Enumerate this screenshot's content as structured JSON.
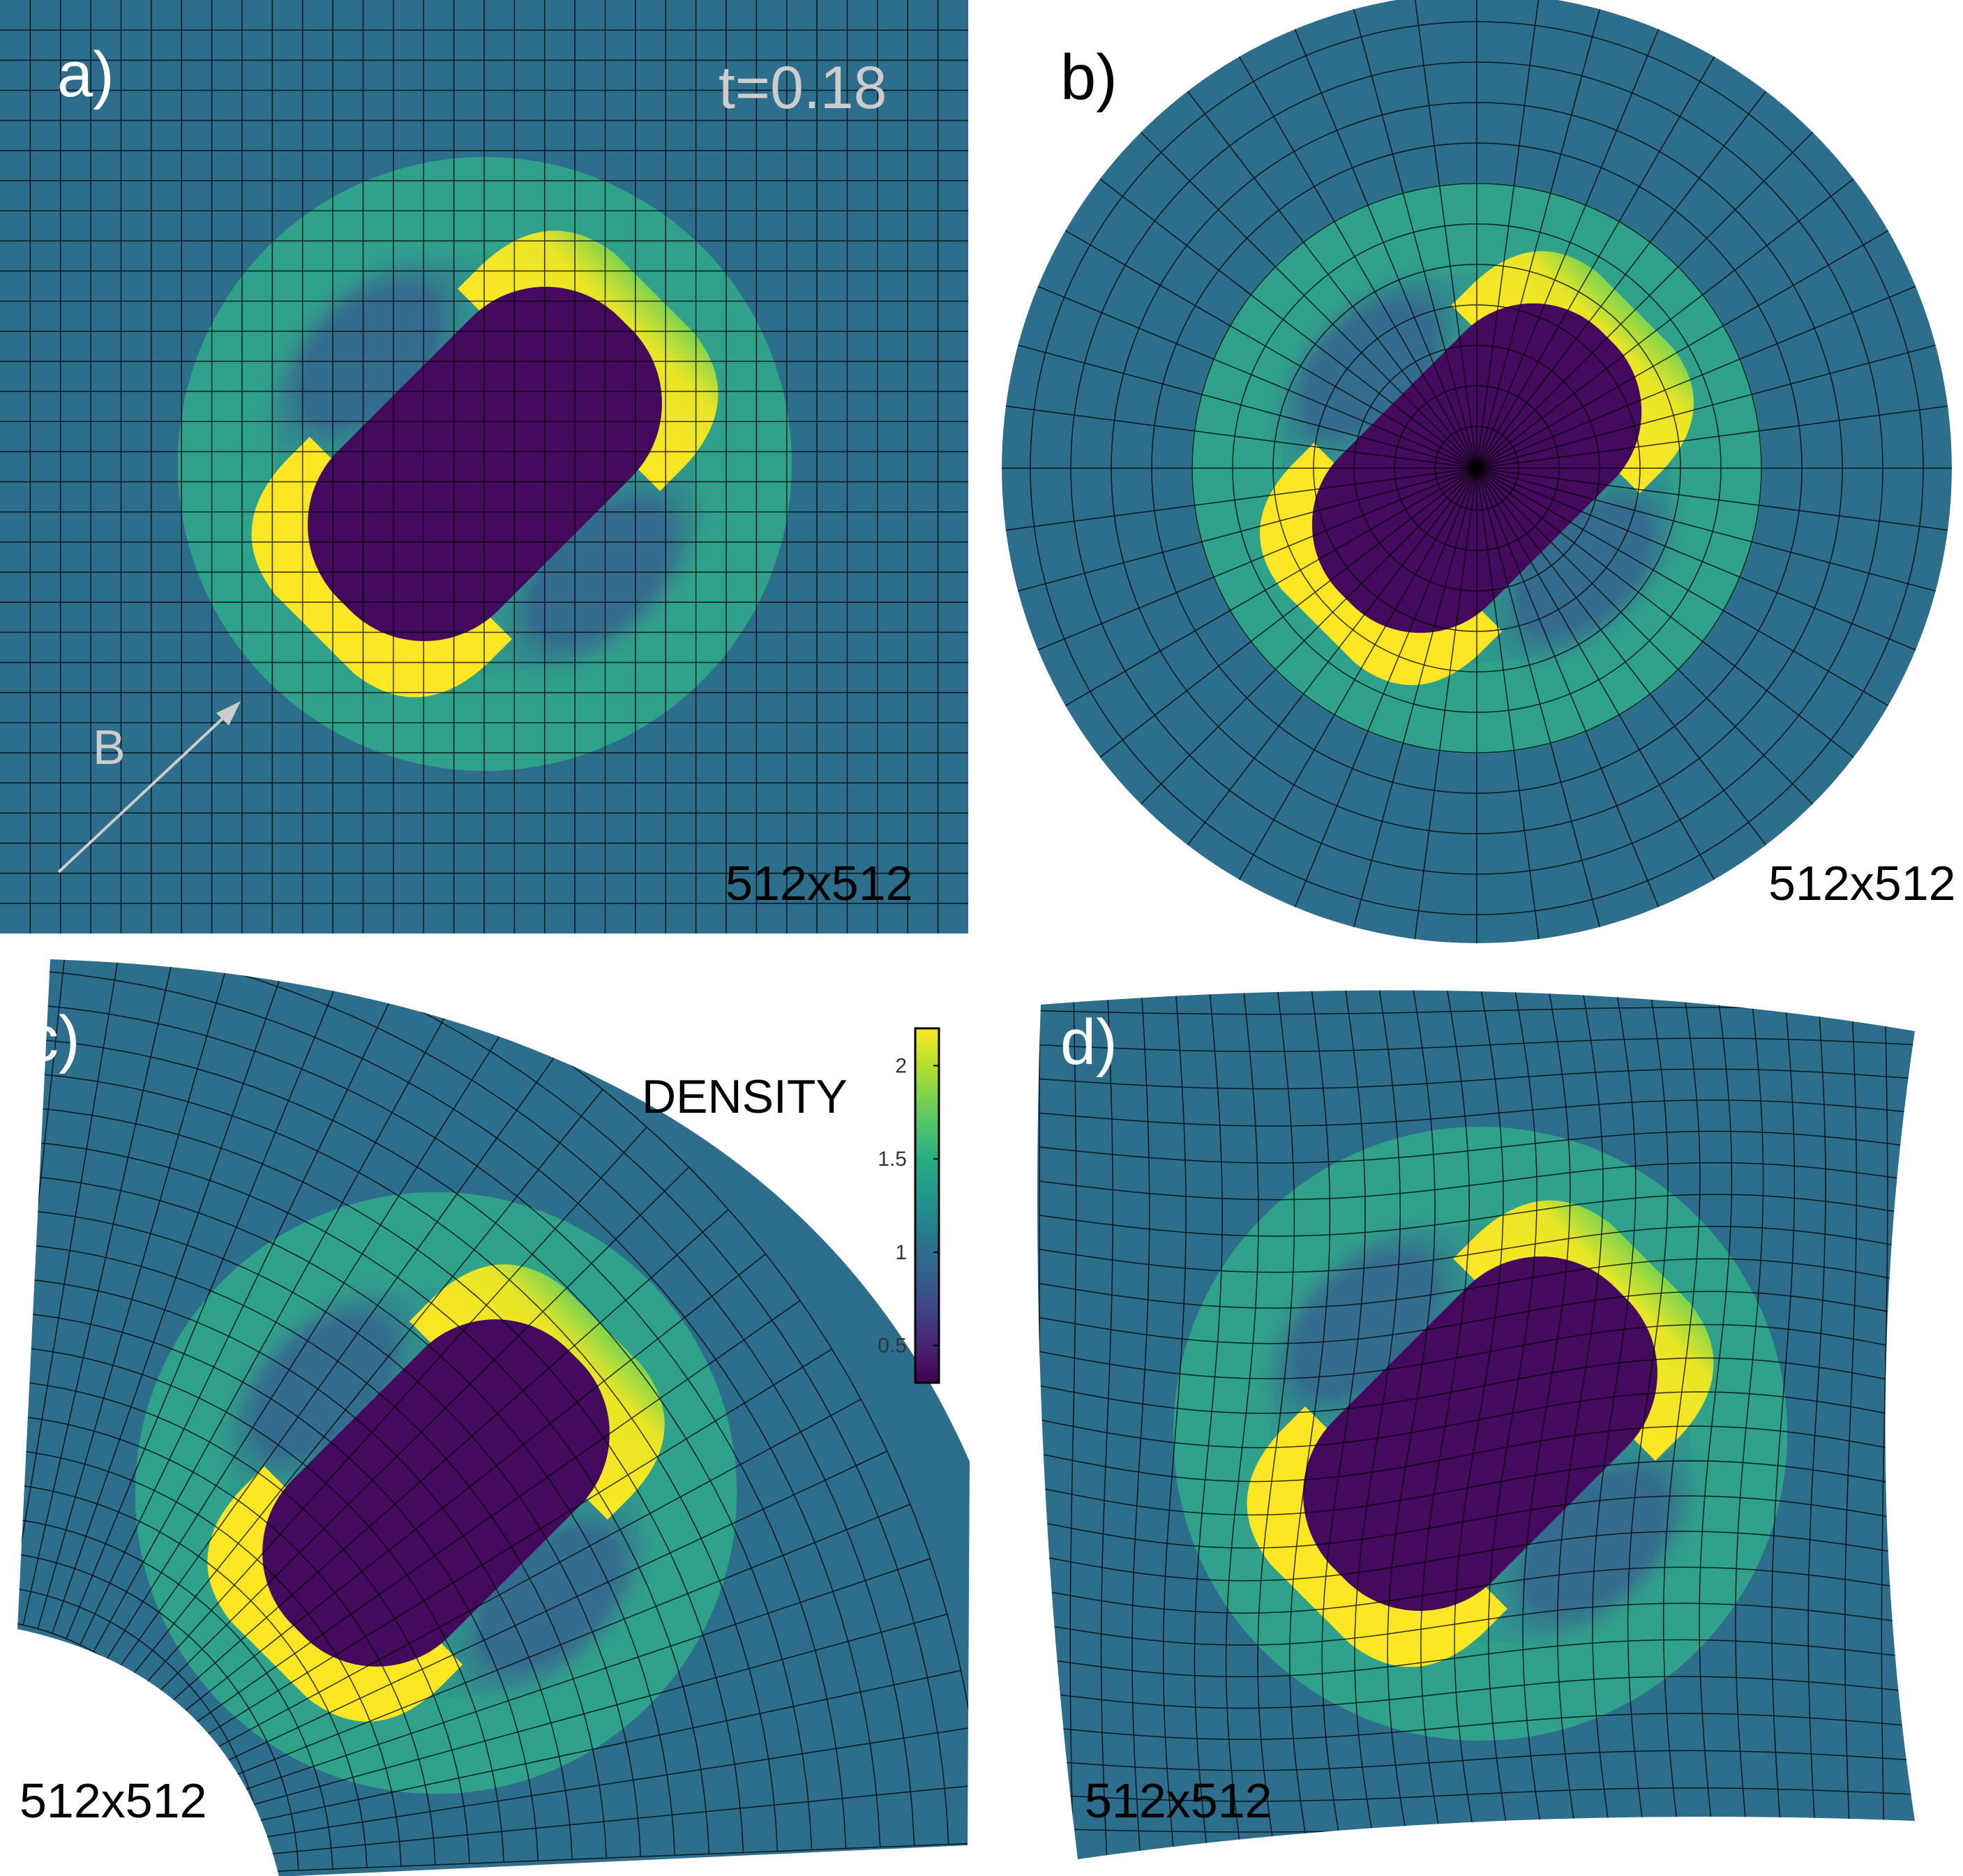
{
  "panels": [
    {
      "id": "a",
      "label": "a)",
      "resolution": "512x512",
      "time": "t=0.18",
      "field_label": "B"
    },
    {
      "id": "b",
      "label": "b)",
      "resolution": "512x512"
    },
    {
      "id": "c",
      "label": "c)",
      "resolution": "512x512"
    },
    {
      "id": "d",
      "label": "d)",
      "resolution": "512x512"
    }
  ],
  "colorbar": {
    "title": "DENSITY",
    "ticks": [
      "2",
      "1.5",
      "1",
      "0.5"
    ],
    "tick_values": [
      2,
      1.5,
      1,
      0.5
    ],
    "range": [
      0.3,
      2.2
    ],
    "colormap": "viridis"
  },
  "colors": {
    "background_field": "#2d6e8c",
    "outer_ring": "#33a08e",
    "low_density": "#3a4f8e",
    "core": "#440a5e",
    "compressed_caps": "#fde725",
    "light_label": "#cccccc",
    "dark_label": "#000000",
    "grid_line": "#000000"
  }
}
